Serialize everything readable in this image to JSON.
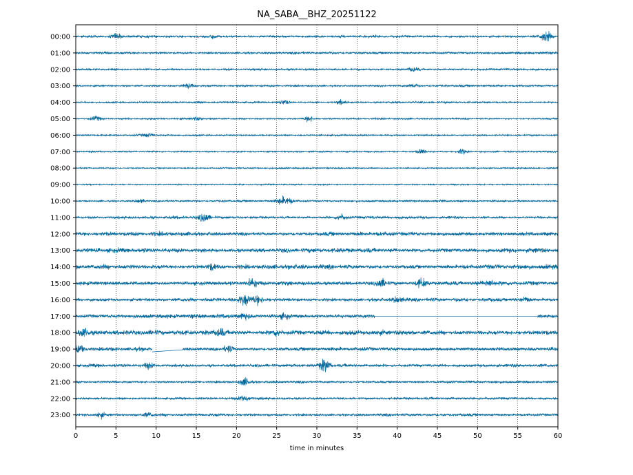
{
  "chart_data": {
    "type": "line",
    "title": "NA_SABA__BHZ_20251122",
    "xlabel": "time in minutes",
    "ylabel": "",
    "xlim": [
      0,
      60
    ],
    "x_ticks": [
      "0",
      "5",
      "10",
      "15",
      "20",
      "25",
      "30",
      "35",
      "40",
      "45",
      "50",
      "55",
      "60"
    ],
    "y_ticks": [
      "00:00",
      "01:00",
      "02:00",
      "03:00",
      "04:00",
      "05:00",
      "06:00",
      "07:00",
      "08:00",
      "09:00",
      "10:00",
      "11:00",
      "12:00",
      "13:00",
      "14:00",
      "15:00",
      "16:00",
      "17:00",
      "18:00",
      "19:00",
      "20:00",
      "21:00",
      "22:00",
      "23:00"
    ],
    "grid": "vertical dotted lines at x ticks",
    "trace_color": "#00669a",
    "rows": [
      {
        "hour": "00:00",
        "amplitude": 0.3,
        "bursts": [
          [
            58.5,
            1.4
          ],
          [
            17,
            0.5
          ],
          [
            5,
            0.5
          ]
        ]
      },
      {
        "hour": "01:00",
        "amplitude": 0.3,
        "bursts": []
      },
      {
        "hour": "02:00",
        "amplitude": 0.25,
        "bursts": [
          [
            42,
            0.6
          ]
        ]
      },
      {
        "hour": "03:00",
        "amplitude": 0.25,
        "bursts": [
          [
            14,
            0.6
          ],
          [
            42,
            0.5
          ]
        ]
      },
      {
        "hour": "04:00",
        "amplitude": 0.22,
        "bursts": [
          [
            26,
            0.6
          ],
          [
            33,
            0.5
          ]
        ]
      },
      {
        "hour": "05:00",
        "amplitude": 0.2,
        "bursts": [
          [
            2.5,
            0.6
          ],
          [
            29,
            0.7
          ],
          [
            15,
            0.4
          ]
        ]
      },
      {
        "hour": "06:00",
        "amplitude": 0.2,
        "bursts": [
          [
            9,
            0.5
          ]
        ]
      },
      {
        "hour": "07:00",
        "amplitude": 0.2,
        "bursts": [
          [
            43,
            0.6
          ],
          [
            48,
            0.6
          ]
        ]
      },
      {
        "hour": "08:00",
        "amplitude": 0.18,
        "bursts": []
      },
      {
        "hour": "09:00",
        "amplitude": 0.18,
        "bursts": []
      },
      {
        "hour": "10:00",
        "amplitude": 0.25,
        "bursts": [
          [
            25.5,
            0.9
          ],
          [
            26.5,
            0.7
          ],
          [
            8,
            0.5
          ]
        ]
      },
      {
        "hour": "11:00",
        "amplitude": 0.35,
        "bursts": [
          [
            16,
            1.1
          ],
          [
            33,
            0.7
          ]
        ]
      },
      {
        "hour": "12:00",
        "amplitude": 0.5,
        "bursts": []
      },
      {
        "hour": "13:00",
        "amplitude": 0.55,
        "bursts": []
      },
      {
        "hour": "14:00",
        "amplitude": 0.55,
        "bursts": [
          [
            17,
            0.7
          ]
        ]
      },
      {
        "hour": "15:00",
        "amplitude": 0.5,
        "bursts": [
          [
            22,
            0.9
          ],
          [
            38,
            1.1
          ],
          [
            43,
            1.0
          ],
          [
            51.5,
            0.7
          ]
        ]
      },
      {
        "hour": "16:00",
        "amplitude": 0.45,
        "bursts": [
          [
            21,
            1.2
          ],
          [
            22.5,
            1.0
          ],
          [
            40,
            0.7
          ],
          [
            56,
            0.6
          ]
        ]
      },
      {
        "hour": "17:00",
        "amplitude": 0.5,
        "bursts": [
          [
            21,
            0.8
          ],
          [
            26,
            0.6
          ]
        ],
        "gaps": [
          [
            37.2,
            57.5
          ]
        ]
      },
      {
        "hour": "18:00",
        "amplitude": 0.6,
        "bursts": [
          [
            1,
            1.1
          ],
          [
            18,
            0.9
          ],
          [
            25,
            0.7
          ]
        ]
      },
      {
        "hour": "19:00",
        "amplitude": 0.45,
        "bursts": [
          [
            0.5,
            0.9
          ],
          [
            19,
            0.8
          ]
        ],
        "gaps": [
          [
            9.5,
            13.3
          ]
        ]
      },
      {
        "hour": "20:00",
        "amplitude": 0.4,
        "bursts": [
          [
            31,
            1.5
          ],
          [
            9,
            0.6
          ]
        ]
      },
      {
        "hour": "21:00",
        "amplitude": 0.3,
        "bursts": [
          [
            21,
            0.9
          ]
        ]
      },
      {
        "hour": "22:00",
        "amplitude": 0.3,
        "bursts": [
          [
            21,
            0.8
          ]
        ]
      },
      {
        "hour": "23:00",
        "amplitude": 0.35,
        "bursts": [
          [
            3,
            0.7
          ],
          [
            9,
            0.5
          ]
        ]
      }
    ]
  }
}
